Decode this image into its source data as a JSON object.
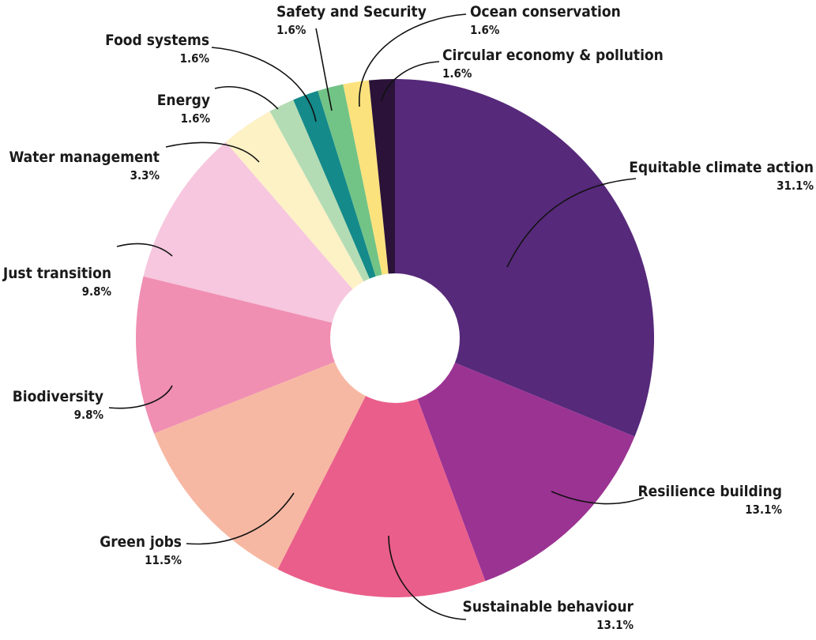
{
  "chart_data": {
    "type": "pie",
    "title": "",
    "slices": [
      {
        "label": "Equitable climate action",
        "value_label": "31.1%",
        "value": 31.1,
        "color": "#56297a"
      },
      {
        "label": "Resilience building",
        "value_label": "13.1%",
        "value": 13.1,
        "color": "#9b3393"
      },
      {
        "label": "Sustainable behaviour",
        "value_label": "13.1%",
        "value": 13.1,
        "color": "#ea5e8b"
      },
      {
        "label": "Green jobs",
        "value_label": "11.5%",
        "value": 11.5,
        "color": "#f7b8a3"
      },
      {
        "label": "Biodiversity",
        "value_label": "9.8%",
        "value": 9.8,
        "color": "#f08fb2"
      },
      {
        "label": "Just transition",
        "value_label": "9.8%",
        "value": 9.8,
        "color": "#f6c7de"
      },
      {
        "label": "Water management",
        "value_label": "3.3%",
        "value": 3.3,
        "color": "#fdf1c6"
      },
      {
        "label": "Energy",
        "value_label": "1.6%",
        "value": 1.6,
        "color": "#b4dcb4"
      },
      {
        "label": "Food systems",
        "value_label": "1.6%",
        "value": 1.6,
        "color": "#148a8a"
      },
      {
        "label": "Safety and Security",
        "value_label": "1.6%",
        "value": 1.6,
        "color": "#72c386"
      },
      {
        "label": "Ocean conservation",
        "value_label": "1.6%",
        "value": 1.6,
        "color": "#fbe27d"
      },
      {
        "label": "Circular economy & pollution",
        "value_label": "1.6%",
        "value": 1.6,
        "color": "#2b1238"
      }
    ],
    "hole": true,
    "legend": "none",
    "label_style": "callouts with leader lines"
  }
}
